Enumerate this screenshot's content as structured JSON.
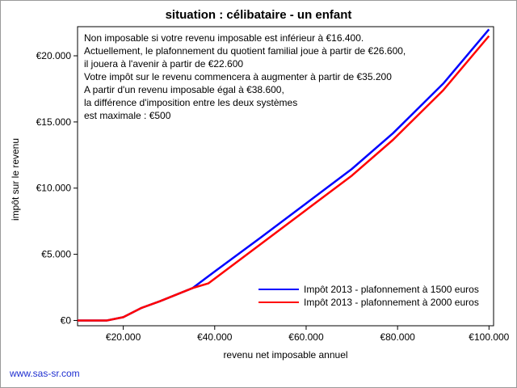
{
  "footer": {
    "text": "www.sas-sr.com"
  },
  "chart_data": {
    "type": "line",
    "title": "situation : célibataire - un enfant",
    "xlabel": "revenu net imposable annuel",
    "ylabel": "impôt sur le revenu",
    "xlim": [
      10000,
      101000
    ],
    "ylim": [
      -400,
      22200
    ],
    "x_ticks": [
      20000,
      40000,
      60000,
      80000,
      100000
    ],
    "x_tick_labels": [
      "€20.000",
      "€40.000",
      "€60.000",
      "€80.000",
      "€100.000"
    ],
    "y_ticks": [
      0,
      5000,
      10000,
      15000,
      20000
    ],
    "y_tick_labels": [
      "€0",
      "€5.000",
      "€10.000",
      "€15.000",
      "€20.000"
    ],
    "legend_position": "bottom-right",
    "annotation": [
      "Non imposable si votre revenu imposable est inférieur à €16.400.",
      "Actuellement, le plafonnement du quotient familial joue à partir de €26.600,",
      "il jouera à l'avenir à partir de €22.600",
      "Votre impôt sur le revenu commencera à augmenter à partir de €35.200",
      "A partir d'un revenu imposable égal à €38.600,",
      "la différence d'imposition entre les deux systèmes",
      "est maximale : €500"
    ],
    "series": [
      {
        "name": "Impôt 2013 - plafonnement à 1500 euros",
        "color": "#0000ff",
        "x": [
          10000,
          16400,
          20000,
          24000,
          28000,
          35200,
          40000,
          50000,
          60000,
          70000,
          79000,
          90000,
          100000
        ],
        "y": [
          0,
          0,
          250,
          950,
          1450,
          2450,
          3700,
          6250,
          8850,
          11450,
          14150,
          17900,
          22000
        ]
      },
      {
        "name": "Impôt 2013 - plafonnement à 2000 euros",
        "color": "#ff0000",
        "x": [
          10000,
          16400,
          20000,
          24000,
          28000,
          35200,
          38600,
          50000,
          60000,
          70000,
          79000,
          90000,
          100000
        ],
        "y": [
          0,
          0,
          250,
          950,
          1450,
          2450,
          2800,
          5750,
          8350,
          10950,
          13650,
          17400,
          21500
        ]
      }
    ]
  }
}
